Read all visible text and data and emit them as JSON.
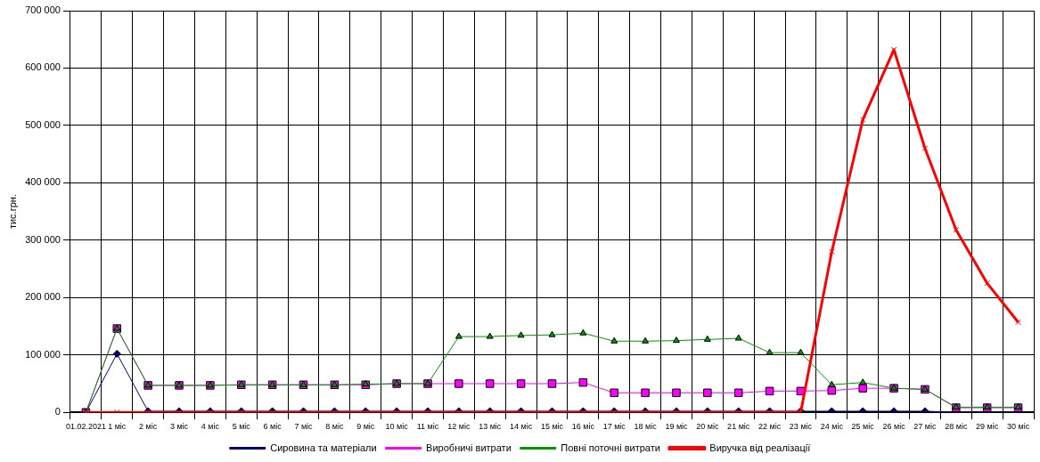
{
  "chart_data": {
    "type": "line",
    "ylabel": "тис.грн.",
    "categories": [
      "01.02.2021",
      "1 міс",
      "2 міс",
      "3 міс",
      "4 міс",
      "5 міс",
      "6 міс",
      "7 міс",
      "8 міс",
      "9 міс",
      "10 міс",
      "11 міс",
      "12 міс",
      "13 міс",
      "14 міс",
      "15 міс",
      "16 міс",
      "17 міс",
      "18 міс",
      "19 міс",
      "20 міс",
      "21 міс",
      "22 міс",
      "23 міс",
      "24 міс",
      "25 міс",
      "26 міс",
      "27 міс",
      "28 міс",
      "29 міс",
      "30 міс"
    ],
    "ylim": [
      0,
      700000
    ],
    "yticks": [
      {
        "value": 0,
        "label": "0"
      },
      {
        "value": 100000,
        "label": "100 000"
      },
      {
        "value": 200000,
        "label": "200 000"
      },
      {
        "value": 300000,
        "label": "300 000"
      },
      {
        "value": 400000,
        "label": "400 000"
      },
      {
        "value": 500000,
        "label": "500 000"
      },
      {
        "value": 600000,
        "label": "600 000"
      },
      {
        "value": 700000,
        "label": "700 000"
      }
    ],
    "grid": true,
    "legend": "bottom",
    "line_style": "solid",
    "series": [
      {
        "name": "Сировина та матеріали",
        "color": "#000080",
        "marker": "diamond",
        "values": [
          0,
          102000,
          2000,
          2000,
          2000,
          2000,
          2000,
          2000,
          2000,
          2000,
          2000,
          2000,
          2000,
          2000,
          2000,
          2000,
          2000,
          2000,
          2000,
          2000,
          2000,
          2000,
          2000,
          2000,
          2000,
          2000,
          2000,
          2000,
          0,
          0,
          0
        ]
      },
      {
        "name": "Виробничі витрати",
        "color": "#ff00ff",
        "marker": "square",
        "values": [
          0,
          146000,
          47000,
          47000,
          47000,
          48000,
          48000,
          48000,
          48000,
          48000,
          50000,
          50000,
          50000,
          50000,
          50000,
          50000,
          52000,
          34000,
          34000,
          34000,
          34000,
          34000,
          37000,
          37000,
          38000,
          42000,
          42000,
          40000,
          8000,
          8000,
          8000
        ]
      },
      {
        "name": "Повні поточні витрати",
        "color": "#009900",
        "marker": "triangle",
        "values": [
          0,
          146000,
          47000,
          47000,
          47000,
          48000,
          48000,
          48000,
          48000,
          49000,
          50000,
          50000,
          132000,
          132000,
          134000,
          135000,
          138000,
          124000,
          124000,
          125000,
          127000,
          129000,
          104000,
          104000,
          48000,
          52000,
          42000,
          40000,
          9000,
          9000,
          9000
        ]
      },
      {
        "name": "Виручка від реалізації",
        "color": "#ff0000",
        "marker": "cross",
        "values": [
          0,
          0,
          0,
          0,
          0,
          0,
          0,
          0,
          0,
          0,
          0,
          0,
          0,
          0,
          0,
          0,
          0,
          0,
          0,
          0,
          0,
          0,
          0,
          0,
          280000,
          510000,
          632000,
          460000,
          318000,
          225000,
          157000
        ]
      }
    ]
  }
}
